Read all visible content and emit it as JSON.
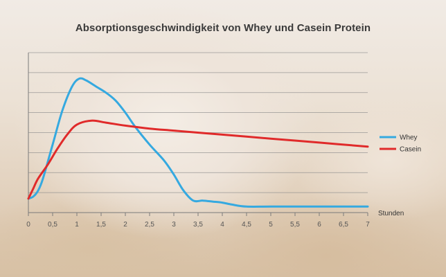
{
  "chart_data": {
    "type": "line",
    "title": "Absorptionsgeschwindigkeit von Whey und Casein Protein",
    "xlabel": "Stunden",
    "ylabel": "",
    "xlim": [
      0,
      7
    ],
    "ylim": [
      0,
      8
    ],
    "x_ticks": [
      "0",
      "0,5",
      "1",
      "1,5",
      "2",
      "2,5",
      "3",
      "3,5",
      "4",
      "4,5",
      "5",
      "5,5",
      "6",
      "6,5",
      "7"
    ],
    "grid": true,
    "legend_position": "right",
    "series": [
      {
        "name": "Whey",
        "color": "#35a9e0",
        "x": [
          0,
          0.1,
          0.2,
          0.3,
          0.5,
          0.7,
          0.9,
          1.05,
          1.2,
          1.4,
          1.6,
          1.8,
          2.0,
          2.2,
          2.5,
          2.8,
          3.0,
          3.2,
          3.4,
          3.6,
          3.8,
          4.0,
          4.2,
          4.5,
          5.0,
          6.0,
          7.0
        ],
        "y": [
          0.7,
          0.8,
          1.1,
          1.7,
          3.4,
          5.1,
          6.3,
          6.7,
          6.6,
          6.3,
          6.0,
          5.6,
          5.0,
          4.3,
          3.4,
          2.6,
          1.9,
          1.1,
          0.6,
          0.6,
          0.55,
          0.5,
          0.4,
          0.3,
          0.3,
          0.3,
          0.3
        ]
      },
      {
        "name": "Casein",
        "color": "#e02a2a",
        "x": [
          0,
          0.1,
          0.2,
          0.4,
          0.6,
          0.8,
          1.0,
          1.3,
          1.6,
          2.0,
          2.5,
          3.0,
          4.0,
          5.0,
          6.0,
          7.0
        ],
        "y": [
          0.7,
          1.2,
          1.7,
          2.4,
          3.2,
          3.9,
          4.4,
          4.6,
          4.5,
          4.35,
          4.2,
          4.1,
          3.9,
          3.7,
          3.5,
          3.3
        ]
      }
    ]
  }
}
